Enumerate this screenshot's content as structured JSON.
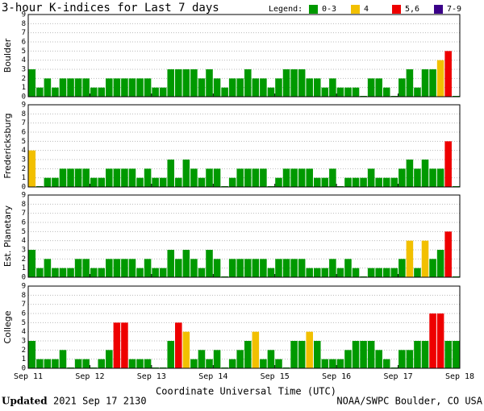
{
  "title": "3-hour K-indices for Last 7 days",
  "legend_title": "Legend:",
  "legend": [
    {
      "label": "0-3",
      "color": "#009900",
      "range": [
        0,
        3
      ]
    },
    {
      "label": "4",
      "color": "#f2c000",
      "range": [
        4,
        4
      ]
    },
    {
      "label": "5,6",
      "color": "#ee0000",
      "range": [
        5,
        6
      ]
    },
    {
      "label": "7-9",
      "color": "#3a0088",
      "range": [
        7,
        9
      ]
    }
  ],
  "x_label": "Coordinate Universal Time (UTC)",
  "xticks": [
    "Sep 11",
    "Sep 12",
    "Sep 13",
    "Sep 14",
    "Sep 15",
    "Sep 16",
    "Sep 17",
    "Sep 18"
  ],
  "footer": {
    "updated": "Updated",
    "time": "2021 Sep 17 2130",
    "source": "NOAA/SWPC Boulder, CO USA"
  },
  "chart_data": [
    {
      "type": "bar",
      "y_label": "Boulder",
      "ylim": [
        0,
        9
      ],
      "yticks": [
        0,
        1,
        2,
        3,
        4,
        5,
        6,
        7,
        8,
        9
      ],
      "grid": true,
      "values": [
        3,
        1,
        2,
        1,
        2,
        2,
        2,
        2,
        1,
        1,
        2,
        2,
        2,
        2,
        2,
        2,
        1,
        1,
        3,
        3,
        3,
        3,
        2,
        3,
        2,
        1,
        2,
        2,
        3,
        2,
        2,
        1,
        2,
        3,
        3,
        3,
        2,
        2,
        1,
        2,
        1,
        1,
        1,
        0,
        2,
        2,
        1,
        0,
        2,
        3,
        1,
        3,
        3,
        4,
        5,
        0
      ]
    },
    {
      "type": "bar",
      "y_label": "Fredericksburg",
      "ylim": [
        0,
        9
      ],
      "yticks": [
        0,
        1,
        2,
        3,
        4,
        5,
        6,
        7,
        8,
        9
      ],
      "grid": true,
      "values": [
        4,
        0,
        1,
        1,
        2,
        2,
        2,
        2,
        1,
        1,
        2,
        2,
        2,
        2,
        1,
        2,
        1,
        1,
        3,
        1,
        3,
        2,
        1,
        2,
        2,
        0,
        1,
        2,
        2,
        2,
        2,
        0,
        1,
        2,
        2,
        2,
        2,
        1,
        1,
        2,
        0,
        1,
        1,
        1,
        2,
        1,
        1,
        1,
        2,
        3,
        2,
        3,
        2,
        2,
        5,
        0
      ]
    },
    {
      "type": "bar",
      "y_label": "Est. Planetary",
      "ylim": [
        0,
        9
      ],
      "yticks": [
        0,
        1,
        2,
        3,
        4,
        5,
        6,
        7,
        8,
        9
      ],
      "grid": true,
      "values": [
        3,
        1,
        2,
        1,
        1,
        1,
        2,
        2,
        1,
        1,
        2,
        2,
        2,
        2,
        1,
        2,
        1,
        1,
        3,
        2,
        3,
        2,
        1,
        3,
        2,
        0,
        2,
        2,
        2,
        2,
        2,
        1,
        2,
        2,
        2,
        2,
        1,
        1,
        1,
        2,
        1,
        2,
        1,
        0,
        1,
        1,
        1,
        1,
        2,
        4,
        1,
        4,
        2,
        3,
        5,
        0
      ]
    },
    {
      "type": "bar",
      "y_label": "College",
      "ylim": [
        0,
        9
      ],
      "yticks": [
        0,
        1,
        2,
        3,
        4,
        5,
        6,
        7,
        8,
        9
      ],
      "grid": true,
      "values": [
        3,
        1,
        1,
        1,
        2,
        0,
        1,
        1,
        0,
        1,
        2,
        5,
        5,
        1,
        1,
        1,
        0,
        0,
        3,
        5,
        4,
        1,
        2,
        1,
        2,
        0,
        1,
        2,
        3,
        4,
        1,
        2,
        1,
        0,
        3,
        3,
        4,
        3,
        1,
        1,
        1,
        2,
        3,
        3,
        3,
        2,
        1,
        0,
        2,
        2,
        3,
        3,
        6,
        6,
        3,
        3
      ]
    }
  ]
}
